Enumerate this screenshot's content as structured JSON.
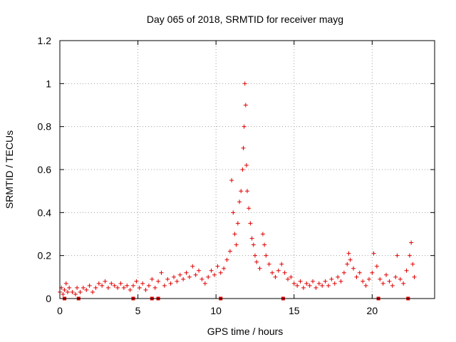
{
  "colors": {
    "series": "#e00000",
    "grid": "#a0a0a0",
    "axis": "#000000"
  },
  "chart_data": {
    "type": "scatter",
    "title": "Day 065 of 2018, SRMTID for receiver mayg",
    "xlabel": "GPS time / hours",
    "ylabel": "SRMTID / TECUs",
    "xlim": [
      0,
      24
    ],
    "ylim": [
      0,
      1.2
    ],
    "xticks": [
      0,
      5,
      10,
      15,
      20
    ],
    "yticks": [
      0,
      0.2,
      0.4,
      0.6,
      0.8,
      1,
      1.2
    ],
    "xtick_labels": [
      "0",
      "5",
      "10",
      "15",
      "20"
    ],
    "ytick_labels": [
      "0",
      "0.2",
      "0.4",
      "0.6",
      "0.8",
      "1",
      "1.2"
    ],
    "grid": true,
    "marker": "+",
    "series": [
      {
        "name": "SRMTID",
        "points": [
          [
            0.0,
            0.03
          ],
          [
            0.1,
            0.05
          ],
          [
            0.2,
            0.02
          ],
          [
            0.3,
            0.04
          ],
          [
            0.4,
            0.07
          ],
          [
            0.5,
            0.03
          ],
          [
            0.6,
            0.05
          ],
          [
            0.8,
            0.03
          ],
          [
            1.0,
            0.02
          ],
          [
            1.1,
            0.05
          ],
          [
            1.3,
            0.03
          ],
          [
            1.5,
            0.05
          ],
          [
            1.7,
            0.04
          ],
          [
            1.9,
            0.06
          ],
          [
            2.1,
            0.03
          ],
          [
            2.3,
            0.05
          ],
          [
            2.5,
            0.07
          ],
          [
            2.7,
            0.06
          ],
          [
            2.9,
            0.08
          ],
          [
            3.1,
            0.05
          ],
          [
            3.3,
            0.07
          ],
          [
            3.5,
            0.06
          ],
          [
            3.7,
            0.05
          ],
          [
            3.9,
            0.07
          ],
          [
            4.1,
            0.05
          ],
          [
            4.3,
            0.06
          ],
          [
            4.5,
            0.04
          ],
          [
            4.7,
            0.06
          ],
          [
            4.9,
            0.08
          ],
          [
            5.1,
            0.05
          ],
          [
            5.3,
            0.07
          ],
          [
            5.5,
            0.04
          ],
          [
            5.7,
            0.06
          ],
          [
            5.9,
            0.09
          ],
          [
            6.1,
            0.05
          ],
          [
            6.3,
            0.08
          ],
          [
            6.5,
            0.12
          ],
          [
            6.7,
            0.06
          ],
          [
            6.9,
            0.09
          ],
          [
            7.1,
            0.07
          ],
          [
            7.3,
            0.1
          ],
          [
            7.5,
            0.08
          ],
          [
            7.7,
            0.11
          ],
          [
            7.9,
            0.09
          ],
          [
            8.1,
            0.12
          ],
          [
            8.3,
            0.1
          ],
          [
            8.5,
            0.15
          ],
          [
            8.7,
            0.11
          ],
          [
            8.9,
            0.13
          ],
          [
            9.1,
            0.09
          ],
          [
            9.3,
            0.07
          ],
          [
            9.5,
            0.1
          ],
          [
            9.7,
            0.13
          ],
          [
            9.9,
            0.11
          ],
          [
            10.1,
            0.15
          ],
          [
            10.3,
            0.12
          ],
          [
            10.5,
            0.14
          ],
          [
            10.7,
            0.18
          ],
          [
            10.9,
            0.22
          ],
          [
            11.0,
            0.55
          ],
          [
            11.1,
            0.4
          ],
          [
            11.2,
            0.3
          ],
          [
            11.3,
            0.25
          ],
          [
            11.4,
            0.35
          ],
          [
            11.5,
            0.45
          ],
          [
            11.6,
            0.5
          ],
          [
            11.7,
            0.6
          ],
          [
            11.75,
            0.7
          ],
          [
            11.8,
            0.8
          ],
          [
            11.85,
            1.0
          ],
          [
            11.9,
            0.9
          ],
          [
            11.95,
            0.62
          ],
          [
            12.0,
            0.5
          ],
          [
            12.1,
            0.42
          ],
          [
            12.2,
            0.35
          ],
          [
            12.3,
            0.28
          ],
          [
            12.4,
            0.25
          ],
          [
            12.5,
            0.2
          ],
          [
            12.6,
            0.17
          ],
          [
            12.8,
            0.14
          ],
          [
            13.0,
            0.3
          ],
          [
            13.1,
            0.25
          ],
          [
            13.2,
            0.2
          ],
          [
            13.4,
            0.16
          ],
          [
            13.6,
            0.12
          ],
          [
            13.8,
            0.1
          ],
          [
            14.0,
            0.13
          ],
          [
            14.2,
            0.16
          ],
          [
            14.4,
            0.12
          ],
          [
            14.6,
            0.09
          ],
          [
            14.8,
            0.1
          ],
          [
            15.0,
            0.07
          ],
          [
            15.2,
            0.06
          ],
          [
            15.4,
            0.08
          ],
          [
            15.6,
            0.05
          ],
          [
            15.8,
            0.07
          ],
          [
            16.0,
            0.06
          ],
          [
            16.2,
            0.08
          ],
          [
            16.4,
            0.05
          ],
          [
            16.6,
            0.07
          ],
          [
            16.8,
            0.06
          ],
          [
            17.0,
            0.08
          ],
          [
            17.2,
            0.06
          ],
          [
            17.4,
            0.09
          ],
          [
            17.6,
            0.07
          ],
          [
            17.8,
            0.1
          ],
          [
            18.0,
            0.08
          ],
          [
            18.2,
            0.12
          ],
          [
            18.4,
            0.16
          ],
          [
            18.5,
            0.21
          ],
          [
            18.6,
            0.18
          ],
          [
            18.8,
            0.14
          ],
          [
            19.0,
            0.1
          ],
          [
            19.2,
            0.12
          ],
          [
            19.4,
            0.08
          ],
          [
            19.6,
            0.06
          ],
          [
            19.8,
            0.09
          ],
          [
            20.0,
            0.12
          ],
          [
            20.1,
            0.21
          ],
          [
            20.3,
            0.15
          ],
          [
            20.5,
            0.09
          ],
          [
            20.7,
            0.07
          ],
          [
            20.9,
            0.11
          ],
          [
            21.1,
            0.08
          ],
          [
            21.3,
            0.06
          ],
          [
            21.5,
            0.1
          ],
          [
            21.6,
            0.2
          ],
          [
            21.8,
            0.09
          ],
          [
            22.0,
            0.07
          ],
          [
            22.2,
            0.13
          ],
          [
            22.4,
            0.2
          ],
          [
            22.5,
            0.26
          ],
          [
            22.6,
            0.16
          ],
          [
            22.7,
            0.1
          ]
        ]
      }
    ],
    "gap_markers_x": [
      0.3,
      1.2,
      4.7,
      5.9,
      6.3,
      10.3,
      14.3,
      20.4,
      22.3
    ]
  }
}
